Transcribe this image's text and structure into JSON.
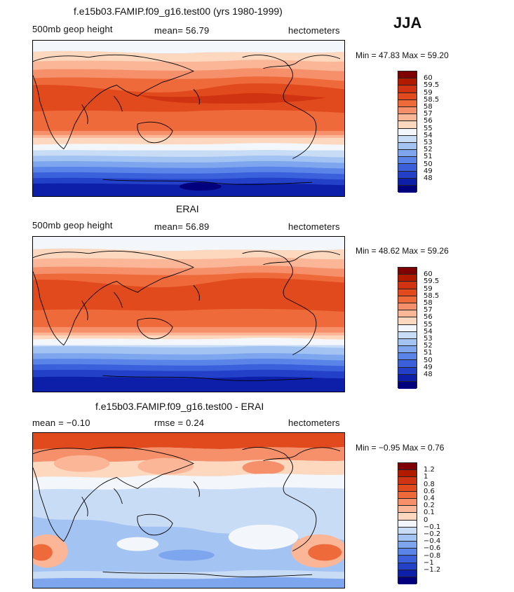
{
  "season": "JJA",
  "panels": [
    {
      "title": "f.e15b03.FAMIP.f09_g16.test00 (yrs 1980-1999)",
      "left": "500mb geop height",
      "center": "mean=  56.79",
      "right": "hectometers",
      "minmax": "Min =  47.83  Max =  59.20",
      "scale": {
        "colors": [
          "#7f0000",
          "#b21a00",
          "#d03312",
          "#e14a1c",
          "#ef6a3a",
          "#f6906a",
          "#fab697",
          "#fdd8bf",
          "#f3f6fa",
          "#c9dcf6",
          "#a3c3f3",
          "#7ea6ef",
          "#5a84e8",
          "#3b60dc",
          "#2240c8",
          "#0d1fa8",
          "#03007e"
        ],
        "labels": [
          "60",
          "59.5",
          "59",
          "58.5",
          "58",
          "57",
          "56",
          "55",
          "54",
          "53",
          "52",
          "51",
          "50",
          "49",
          "48"
        ]
      }
    },
    {
      "title": "ERAI",
      "left": "500mb geop height",
      "center": "mean=  56.89",
      "right": "hectometers",
      "minmax": "Min =  48.62  Max =  59.26",
      "scale": {
        "colors": [
          "#7f0000",
          "#b21a00",
          "#d03312",
          "#e14a1c",
          "#ef6a3a",
          "#f6906a",
          "#fab697",
          "#fdd8bf",
          "#f3f6fa",
          "#c9dcf6",
          "#a3c3f3",
          "#7ea6ef",
          "#5a84e8",
          "#3b60dc",
          "#2240c8",
          "#0d1fa8",
          "#03007e"
        ],
        "labels": [
          "60",
          "59.5",
          "59",
          "58.5",
          "58",
          "57",
          "56",
          "55",
          "54",
          "53",
          "52",
          "51",
          "50",
          "49",
          "48"
        ]
      }
    },
    {
      "title": "f.e15b03.FAMIP.f09_g16.test00 - ERAI",
      "left": "mean =  −0.10",
      "center": "rmse =    0.24",
      "right": "hectometers",
      "minmax": "Min =  −0.95  Max =    0.76",
      "scale": {
        "colors": [
          "#7f0000",
          "#b21a00",
          "#d03312",
          "#e14a1c",
          "#ef6a3a",
          "#f6906a",
          "#fab697",
          "#fdd8bf",
          "#f3f6fa",
          "#c9dcf6",
          "#a3c3f3",
          "#7ea6ef",
          "#5a84e8",
          "#3b60dc",
          "#2240c8",
          "#0d1fa8",
          "#03007e"
        ],
        "labels": [
          "1.2",
          "1",
          "0.8",
          "0.6",
          "0.4",
          "0.2",
          "0.1",
          "0",
          "−0.1",
          "−0.2",
          "−0.4",
          "−0.6",
          "−0.8",
          "−1",
          "−1.2"
        ]
      }
    }
  ]
}
